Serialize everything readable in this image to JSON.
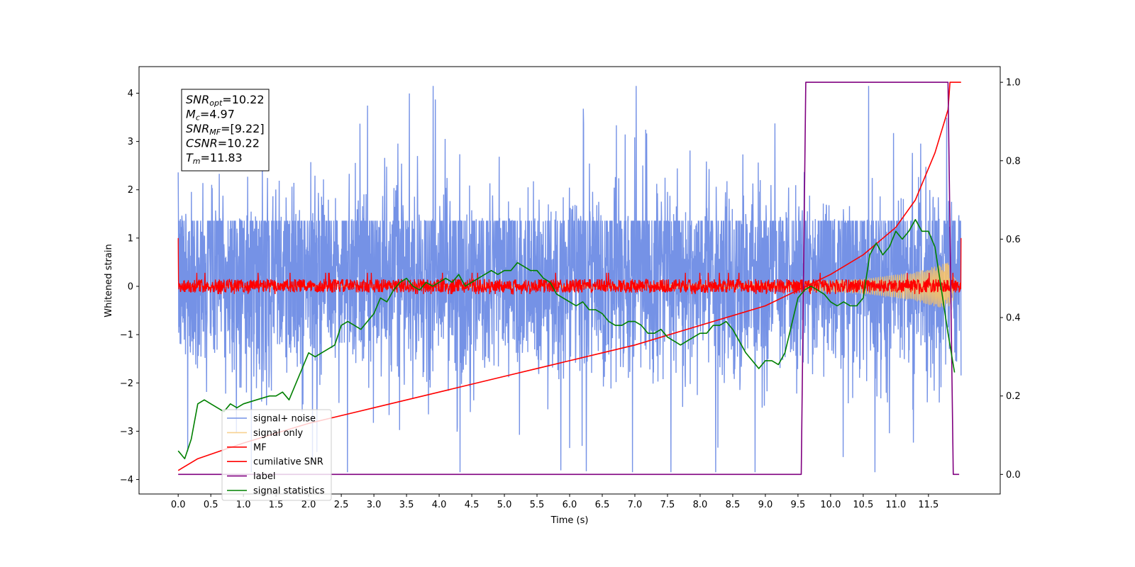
{
  "chart_data": {
    "type": "line",
    "xlabel": "Time (s)",
    "ylabel_left": "Whitened strain",
    "ylabel_right": "",
    "xlim": [
      -0.6,
      12.6
    ],
    "ylim_left": [
      -4.3,
      4.55
    ],
    "ylim_right": [
      -0.05,
      1.04
    ],
    "x_ticks": [
      "0.0",
      "0.5",
      "1.0",
      "1.5",
      "2.0",
      "2.5",
      "3.0",
      "3.5",
      "4.0",
      "4.5",
      "5.0",
      "5.5",
      "6.0",
      "6.5",
      "7.0",
      "7.5",
      "8.0",
      "8.5",
      "9.0",
      "9.5",
      "10.0",
      "10.5",
      "11.0",
      "11.5"
    ],
    "y_ticks_left": [
      "−4",
      "−3",
      "−2",
      "−1",
      "0",
      "1",
      "2",
      "3",
      "4"
    ],
    "y_ticks_right": [
      "0.0",
      "0.2",
      "0.4",
      "0.6",
      "0.8",
      "1.0"
    ],
    "grid": false,
    "legend_position": "lower-left",
    "annotation": {
      "lines": [
        {
          "sym": "SNR",
          "sub": "opt",
          "value": "=10.22"
        },
        {
          "sym": "M",
          "sub": "c",
          "value": "=4.97"
        },
        {
          "sym": "SNR",
          "sub": "MF",
          "value": "=[9.22]"
        },
        {
          "sym": "CSNR",
          "sub": "",
          "value": "=10.22"
        },
        {
          "sym": "T",
          "sub": "m",
          "value": "=11.83"
        }
      ]
    },
    "series": [
      {
        "name": "signal+ noise",
        "color": "#7592e6",
        "axis": "left",
        "kind": "noise",
        "x_range": [
          0.0,
          12.0
        ],
        "envelope": [
          -1.6,
          1.6
        ],
        "extrema_max": 4.15,
        "extrema_min": -3.85
      },
      {
        "name": "signal only",
        "color": "#f5c26b",
        "axis": "left",
        "kind": "chirp",
        "x_range": [
          0.0,
          12.0
        ],
        "amplitude": {
          "x": [
            0.0,
            9.0,
            10.5,
            11.3,
            11.8,
            11.95
          ],
          "y": [
            0.0,
            0.05,
            0.15,
            0.3,
            0.5,
            0.1
          ]
        }
      },
      {
        "name": "MF",
        "color": "#ff0000",
        "axis": "left",
        "kind": "noise",
        "x_range": [
          0.0,
          12.0
        ],
        "envelope": [
          -0.18,
          0.2
        ],
        "endpoints": [
          1.0,
          1.0
        ]
      },
      {
        "name": "cumilative SNR",
        "color": "#ff0000",
        "axis": "right",
        "kind": "line",
        "x": [
          0.0,
          0.3,
          1.0,
          2.0,
          3.0,
          4.0,
          5.0,
          6.0,
          7.0,
          8.0,
          9.0,
          9.5,
          10.0,
          10.5,
          11.0,
          11.3,
          11.6,
          11.8,
          11.83,
          12.0
        ],
        "y": [
          0.01,
          0.04,
          0.08,
          0.13,
          0.17,
          0.21,
          0.25,
          0.29,
          0.33,
          0.38,
          0.43,
          0.47,
          0.51,
          0.56,
          0.63,
          0.7,
          0.82,
          0.93,
          1.0,
          1.0
        ]
      },
      {
        "name": "label",
        "color": "#800080",
        "axis": "right",
        "kind": "line",
        "x": [
          0.0,
          9.55,
          9.62,
          11.8,
          11.88,
          11.97
        ],
        "y": [
          0.0,
          0.0,
          1.0,
          1.0,
          0.0,
          0.0
        ]
      },
      {
        "name": "signal statistics",
        "color": "#008000",
        "axis": "right",
        "kind": "line",
        "x": [
          0.0,
          0.1,
          0.2,
          0.3,
          0.4,
          0.5,
          0.6,
          0.7,
          0.8,
          0.9,
          1.0,
          1.2,
          1.4,
          1.5,
          1.6,
          1.7,
          1.8,
          1.9,
          2.0,
          2.1,
          2.2,
          2.4,
          2.5,
          2.6,
          2.7,
          2.8,
          2.9,
          3.0,
          3.1,
          3.2,
          3.3,
          3.4,
          3.5,
          3.6,
          3.7,
          3.8,
          3.9,
          4.0,
          4.1,
          4.2,
          4.3,
          4.4,
          4.5,
          4.6,
          4.7,
          4.8,
          4.9,
          5.0,
          5.1,
          5.2,
          5.3,
          5.4,
          5.5,
          5.6,
          5.7,
          5.8,
          5.9,
          6.0,
          6.1,
          6.2,
          6.3,
          6.4,
          6.5,
          6.6,
          6.7,
          6.8,
          6.9,
          7.0,
          7.1,
          7.2,
          7.3,
          7.4,
          7.5,
          7.6,
          7.7,
          7.8,
          7.9,
          8.0,
          8.1,
          8.2,
          8.3,
          8.4,
          8.5,
          8.6,
          8.7,
          8.8,
          8.9,
          9.0,
          9.1,
          9.2,
          9.3,
          9.4,
          9.5,
          9.6,
          9.7,
          9.8,
          9.9,
          10.0,
          10.1,
          10.2,
          10.3,
          10.4,
          10.5,
          10.6,
          10.7,
          10.8,
          10.9,
          11.0,
          11.1,
          11.2,
          11.3,
          11.4,
          11.5,
          11.6,
          11.7,
          11.8,
          11.9
        ],
        "y": [
          0.06,
          0.04,
          0.09,
          0.18,
          0.19,
          0.18,
          0.17,
          0.16,
          0.18,
          0.17,
          0.18,
          0.19,
          0.2,
          0.2,
          0.21,
          0.19,
          0.23,
          0.27,
          0.31,
          0.3,
          0.31,
          0.33,
          0.38,
          0.39,
          0.38,
          0.37,
          0.39,
          0.41,
          0.45,
          0.44,
          0.47,
          0.49,
          0.5,
          0.48,
          0.47,
          0.49,
          0.48,
          0.49,
          0.5,
          0.49,
          0.51,
          0.48,
          0.49,
          0.5,
          0.51,
          0.52,
          0.51,
          0.52,
          0.52,
          0.54,
          0.53,
          0.52,
          0.52,
          0.5,
          0.49,
          0.46,
          0.45,
          0.44,
          0.43,
          0.44,
          0.42,
          0.42,
          0.41,
          0.39,
          0.38,
          0.38,
          0.39,
          0.39,
          0.38,
          0.36,
          0.36,
          0.37,
          0.35,
          0.34,
          0.33,
          0.34,
          0.35,
          0.36,
          0.36,
          0.38,
          0.38,
          0.39,
          0.37,
          0.34,
          0.31,
          0.29,
          0.27,
          0.29,
          0.29,
          0.28,
          0.31,
          0.38,
          0.45,
          0.47,
          0.48,
          0.47,
          0.46,
          0.44,
          0.43,
          0.44,
          0.43,
          0.43,
          0.45,
          0.56,
          0.59,
          0.56,
          0.58,
          0.62,
          0.6,
          0.62,
          0.65,
          0.62,
          0.62,
          0.58,
          0.47,
          0.36,
          0.26
        ]
      }
    ]
  }
}
